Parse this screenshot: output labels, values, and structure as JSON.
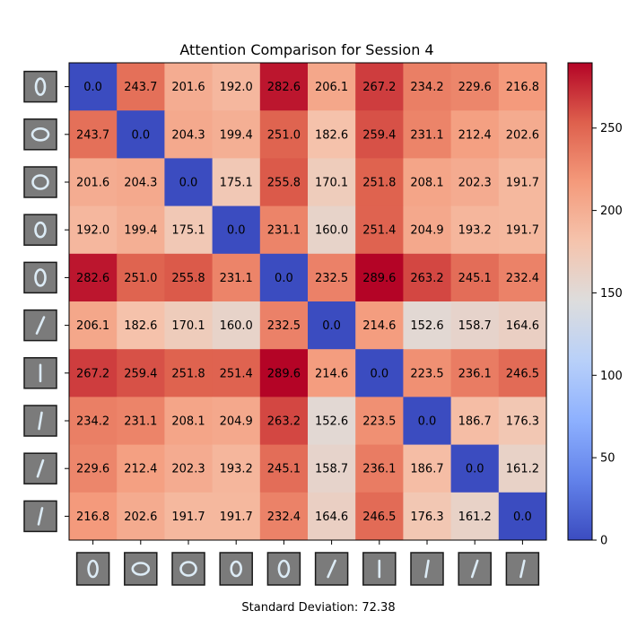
{
  "chart_data": {
    "type": "heatmap",
    "title": "Attention Comparison for Session 4",
    "row_thumbnails": [
      "digit-0",
      "digit-0",
      "digit-0",
      "digit-0",
      "digit-0",
      "digit-1",
      "digit-1",
      "digit-1",
      "digit-1",
      "digit-1"
    ],
    "col_thumbnails": [
      "digit-0",
      "digit-0",
      "digit-0",
      "digit-0",
      "digit-0",
      "digit-1",
      "digit-1",
      "digit-1",
      "digit-1",
      "digit-1"
    ],
    "values": [
      [
        0.0,
        243.7,
        201.6,
        192.0,
        282.6,
        206.1,
        267.2,
        234.2,
        229.6,
        216.8
      ],
      [
        243.7,
        0.0,
        204.3,
        199.4,
        251.0,
        182.6,
        259.4,
        231.1,
        212.4,
        202.6
      ],
      [
        201.6,
        204.3,
        0.0,
        175.1,
        255.8,
        170.1,
        251.8,
        208.1,
        202.3,
        191.7
      ],
      [
        192.0,
        199.4,
        175.1,
        0.0,
        231.1,
        160.0,
        251.4,
        204.9,
        193.2,
        191.7
      ],
      [
        282.6,
        251.0,
        255.8,
        231.1,
        0.0,
        232.5,
        289.6,
        263.2,
        245.1,
        232.4
      ],
      [
        206.1,
        182.6,
        170.1,
        160.0,
        232.5,
        0.0,
        214.6,
        152.6,
        158.7,
        164.6
      ],
      [
        267.2,
        259.4,
        251.8,
        251.4,
        289.6,
        214.6,
        0.0,
        223.5,
        236.1,
        246.5
      ],
      [
        234.2,
        231.1,
        208.1,
        204.9,
        263.2,
        152.6,
        223.5,
        0.0,
        186.7,
        176.3
      ],
      [
        229.6,
        212.4,
        202.3,
        193.2,
        245.1,
        158.7,
        236.1,
        186.7,
        0.0,
        161.2
      ],
      [
        216.8,
        202.6,
        191.7,
        191.7,
        232.4,
        164.6,
        246.5,
        176.3,
        161.2,
        0.0
      ]
    ],
    "colormap": "coolwarm",
    "vmin": 0.0,
    "vmax": 289.6,
    "colorbar_ticks": [
      0,
      50,
      100,
      150,
      200,
      250
    ],
    "legend_position": "right"
  },
  "footer": {
    "std_text": "Standard Deviation: 72.38"
  }
}
